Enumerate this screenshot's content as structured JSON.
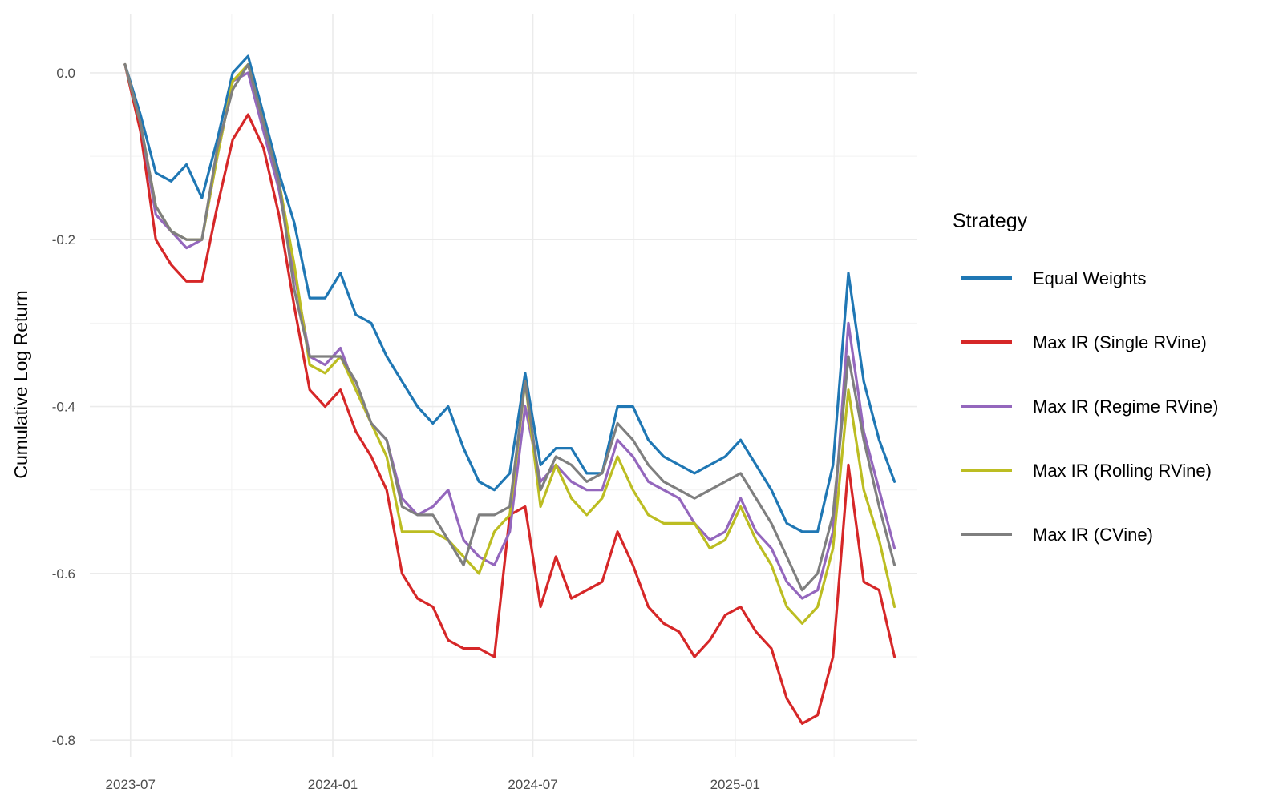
{
  "chart_data": {
    "type": "line",
    "title": "",
    "xlabel": "",
    "ylabel": "Cumulative Log Return",
    "x_ticks": [
      "2023-07",
      "2024-01",
      "2024-07",
      "2025-01"
    ],
    "y_ticks": [
      "0.0",
      "-0.2",
      "-0.4",
      "-0.6",
      "-0.8"
    ],
    "xlim": [
      "2023-05-25",
      "2025-06-15"
    ],
    "ylim": [
      -0.82,
      0.07
    ],
    "grid": true,
    "legend": {
      "title": "Strategy",
      "position": "right"
    },
    "x": [
      "2023-06-26",
      "2023-07-10",
      "2023-07-24",
      "2023-08-07",
      "2023-08-21",
      "2023-09-04",
      "2023-09-18",
      "2023-10-02",
      "2023-10-16",
      "2023-10-30",
      "2023-11-13",
      "2023-11-27",
      "2023-12-11",
      "2023-12-25",
      "2024-01-08",
      "2024-01-22",
      "2024-02-05",
      "2024-02-19",
      "2024-03-04",
      "2024-03-18",
      "2024-04-01",
      "2024-04-15",
      "2024-04-29",
      "2024-05-13",
      "2024-05-27",
      "2024-06-10",
      "2024-06-24",
      "2024-07-08",
      "2024-07-22",
      "2024-08-05",
      "2024-08-19",
      "2024-09-02",
      "2024-09-16",
      "2024-09-30",
      "2024-10-14",
      "2024-10-28",
      "2024-11-11",
      "2024-11-25",
      "2024-12-09",
      "2024-12-23",
      "2025-01-06",
      "2025-01-20",
      "2025-02-03",
      "2025-02-17",
      "2025-03-03",
      "2025-03-17",
      "2025-03-31",
      "2025-04-14",
      "2025-04-28",
      "2025-05-12",
      "2025-05-26"
    ],
    "series": [
      {
        "name": "Equal Weights",
        "color": "#1f77b4",
        "values": [
          0.01,
          -0.05,
          -0.12,
          -0.13,
          -0.11,
          -0.15,
          -0.08,
          0.0,
          0.02,
          -0.05,
          -0.12,
          -0.18,
          -0.27,
          -0.27,
          -0.24,
          -0.29,
          -0.3,
          -0.34,
          -0.37,
          -0.4,
          -0.42,
          -0.4,
          -0.45,
          -0.49,
          -0.5,
          -0.48,
          -0.36,
          -0.47,
          -0.45,
          -0.45,
          -0.48,
          -0.48,
          -0.4,
          -0.4,
          -0.44,
          -0.46,
          -0.47,
          -0.48,
          -0.47,
          -0.46,
          -0.44,
          -0.47,
          -0.5,
          -0.54,
          -0.55,
          -0.55,
          -0.47,
          -0.24,
          -0.37,
          -0.44,
          -0.49
        ]
      },
      {
        "name": "Max IR (Single RVine)",
        "color": "#d62728",
        "values": [
          0.01,
          -0.07,
          -0.2,
          -0.23,
          -0.25,
          -0.25,
          -0.16,
          -0.08,
          -0.05,
          -0.09,
          -0.17,
          -0.28,
          -0.38,
          -0.4,
          -0.38,
          -0.43,
          -0.46,
          -0.5,
          -0.6,
          -0.63,
          -0.64,
          -0.68,
          -0.69,
          -0.69,
          -0.7,
          -0.53,
          -0.52,
          -0.64,
          -0.58,
          -0.63,
          -0.62,
          -0.61,
          -0.55,
          -0.59,
          -0.64,
          -0.66,
          -0.67,
          -0.7,
          -0.68,
          -0.65,
          -0.64,
          -0.67,
          -0.69,
          -0.75,
          -0.78,
          -0.77,
          -0.7,
          -0.47,
          -0.61,
          -0.62,
          -0.7
        ]
      },
      {
        "name": "Max IR (Regime RVine)",
        "color": "#9467bd",
        "values": [
          0.01,
          -0.06,
          -0.17,
          -0.19,
          -0.21,
          -0.2,
          -0.1,
          -0.01,
          0.0,
          -0.07,
          -0.14,
          -0.24,
          -0.34,
          -0.35,
          -0.33,
          -0.38,
          -0.42,
          -0.44,
          -0.51,
          -0.53,
          -0.52,
          -0.5,
          -0.56,
          -0.58,
          -0.59,
          -0.55,
          -0.4,
          -0.49,
          -0.47,
          -0.49,
          -0.5,
          -0.5,
          -0.44,
          -0.46,
          -0.49,
          -0.5,
          -0.51,
          -0.54,
          -0.56,
          -0.55,
          -0.51,
          -0.55,
          -0.57,
          -0.61,
          -0.63,
          -0.62,
          -0.55,
          -0.3,
          -0.43,
          -0.5,
          -0.57
        ]
      },
      {
        "name": "Max IR (Rolling RVine)",
        "color": "#bcbd22",
        "values": [
          0.01,
          -0.06,
          -0.16,
          -0.19,
          -0.2,
          -0.2,
          -0.1,
          -0.01,
          0.01,
          -0.06,
          -0.13,
          -0.23,
          -0.35,
          -0.36,
          -0.34,
          -0.38,
          -0.42,
          -0.46,
          -0.55,
          -0.55,
          -0.55,
          -0.56,
          -0.58,
          -0.6,
          -0.55,
          -0.53,
          -0.37,
          -0.52,
          -0.47,
          -0.51,
          -0.53,
          -0.51,
          -0.46,
          -0.5,
          -0.53,
          -0.54,
          -0.54,
          -0.54,
          -0.57,
          -0.56,
          -0.52,
          -0.56,
          -0.59,
          -0.64,
          -0.66,
          -0.64,
          -0.57,
          -0.38,
          -0.5,
          -0.56,
          -0.64
        ]
      },
      {
        "name": "Max IR (CVine)",
        "color": "#7f7f7f",
        "values": [
          0.01,
          -0.06,
          -0.16,
          -0.19,
          -0.2,
          -0.2,
          -0.09,
          -0.02,
          0.01,
          -0.06,
          -0.13,
          -0.26,
          -0.34,
          -0.34,
          -0.34,
          -0.37,
          -0.42,
          -0.44,
          -0.52,
          -0.53,
          -0.53,
          -0.56,
          -0.59,
          -0.53,
          -0.53,
          -0.52,
          -0.37,
          -0.5,
          -0.46,
          -0.47,
          -0.49,
          -0.48,
          -0.42,
          -0.44,
          -0.47,
          -0.49,
          -0.5,
          -0.51,
          -0.5,
          -0.49,
          -0.48,
          -0.51,
          -0.54,
          -0.58,
          -0.62,
          -0.6,
          -0.53,
          -0.34,
          -0.44,
          -0.52,
          -0.59
        ]
      }
    ]
  }
}
